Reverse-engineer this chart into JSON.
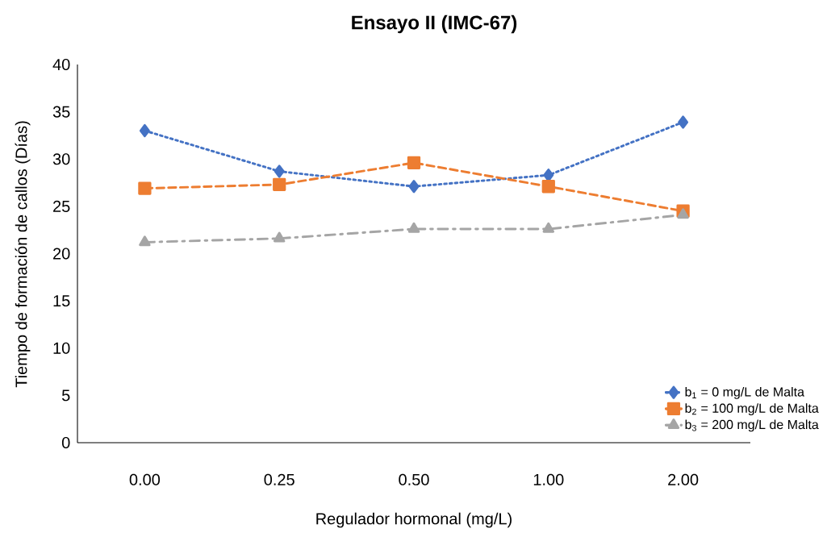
{
  "chart_data": {
    "type": "line",
    "title": "Ensayo II (IMC-67)",
    "xlabel": "Regulador hormonal (mg/L)",
    "ylabel": "Tiempo de formación de callos (Días)",
    "categories": [
      "0.00",
      "0.25",
      "0.50",
      "1.00",
      "2.00"
    ],
    "ylim": [
      0,
      40
    ],
    "yticks": [
      0,
      5,
      10,
      15,
      20,
      25,
      30,
      35,
      40
    ],
    "grid": false,
    "legend": "bottom right",
    "series": [
      {
        "name": "b$_{1}$ = 0 mg/L de Malta",
        "color": "#4472c4",
        "marker": "diamond",
        "line_style": "dotted",
        "values": [
          33.0,
          28.7,
          27.1,
          28.3,
          33.9
        ]
      },
      {
        "name": "b$_{2}$ = 100 mg/L de Malta",
        "color": "#ed7d31",
        "marker": "square",
        "line_style": "dashed",
        "values": [
          26.9,
          27.3,
          29.6,
          27.1,
          24.5
        ]
      },
      {
        "name": "b$_{3}$ = 200 mg/L de Malta",
        "color": "#a5a5a5",
        "marker": "triangle",
        "line_style": "dashdot",
        "values": [
          21.2,
          21.6,
          22.6,
          22.6,
          24.1
        ]
      }
    ]
  }
}
